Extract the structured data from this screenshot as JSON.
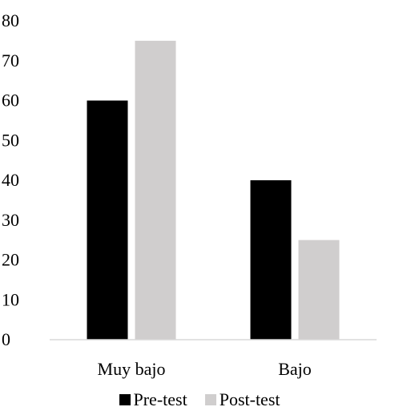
{
  "chart_data": {
    "type": "bar",
    "categories": [
      "Muy bajo",
      "Bajo"
    ],
    "series": [
      {
        "name": "Pre-test",
        "values": [
          60,
          40
        ],
        "color": "#000000"
      },
      {
        "name": "Post-test",
        "values": [
          75,
          25
        ],
        "color": "#d0cece"
      }
    ],
    "title": "",
    "xlabel": "",
    "ylabel": "",
    "ylim": [
      0,
      80
    ],
    "yticks": [
      0,
      10,
      20,
      30,
      40,
      50,
      60,
      70,
      80
    ],
    "grid": false,
    "legend_position": "bottom"
  }
}
